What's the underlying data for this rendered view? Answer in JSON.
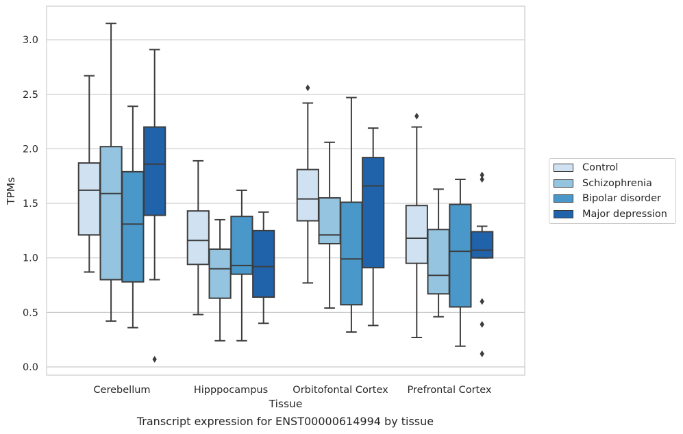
{
  "caption": "Transcript expression for ENST00000614994 by tissue",
  "chart_data": {
    "type": "box",
    "xlabel": "Tissue",
    "ylabel": "TPMs",
    "ylim": [
      -0.07,
      3.3
    ],
    "yticks": [
      0.0,
      0.5,
      1.0,
      1.5,
      2.0,
      2.5,
      3.0
    ],
    "ytick_labels": [
      "0.0",
      "0.5",
      "1.0",
      "1.5",
      "2.0",
      "2.5",
      "3.0"
    ],
    "grid": "horizontal",
    "legend_position": "right",
    "categories": [
      "Cerebellum",
      "Hipppocampus",
      "Orbitofontal Cortex",
      "Prefrontal Cortex"
    ],
    "series": [
      {
        "name": "Control",
        "color": "#d0e1f2",
        "boxes": [
          {
            "min": 0.87,
            "q1": 1.21,
            "median": 1.62,
            "q3": 1.87,
            "max": 2.67,
            "outliers": []
          },
          {
            "min": 0.48,
            "q1": 0.94,
            "median": 1.16,
            "q3": 1.43,
            "max": 1.89,
            "outliers": []
          },
          {
            "min": 0.77,
            "q1": 1.34,
            "median": 1.54,
            "q3": 1.81,
            "max": 2.42,
            "outliers": [
              2.56
            ]
          },
          {
            "min": 0.27,
            "q1": 0.95,
            "median": 1.18,
            "q3": 1.48,
            "max": 2.2,
            "outliers": [
              2.3
            ]
          }
        ]
      },
      {
        "name": "Schizophrenia",
        "color": "#94c4df",
        "boxes": [
          {
            "min": 0.42,
            "q1": 0.8,
            "median": 1.59,
            "q3": 2.02,
            "max": 3.15,
            "outliers": []
          },
          {
            "min": 0.24,
            "q1": 0.63,
            "median": 0.9,
            "q3": 1.08,
            "max": 1.35,
            "outliers": []
          },
          {
            "min": 0.54,
            "q1": 1.13,
            "median": 1.21,
            "q3": 1.55,
            "max": 2.06,
            "outliers": []
          },
          {
            "min": 0.46,
            "q1": 0.67,
            "median": 0.84,
            "q3": 1.26,
            "max": 1.63,
            "outliers": []
          }
        ]
      },
      {
        "name": "Bipolar disorder",
        "color": "#4a98c9",
        "boxes": [
          {
            "min": 0.36,
            "q1": 0.78,
            "median": 1.31,
            "q3": 1.79,
            "max": 2.39,
            "outliers": []
          },
          {
            "min": 0.24,
            "q1": 0.85,
            "median": 0.93,
            "q3": 1.38,
            "max": 1.62,
            "outliers": []
          },
          {
            "min": 0.32,
            "q1": 0.57,
            "median": 0.99,
            "q3": 1.51,
            "max": 2.47,
            "outliers": []
          },
          {
            "min": 0.19,
            "q1": 0.55,
            "median": 1.06,
            "q3": 1.49,
            "max": 1.72,
            "outliers": []
          }
        ]
      },
      {
        "name": "Major depression",
        "color": "#2163aa",
        "boxes": [
          {
            "min": 0.8,
            "q1": 1.39,
            "median": 1.86,
            "q3": 2.2,
            "max": 2.91,
            "outliers": [
              0.07
            ]
          },
          {
            "min": 0.4,
            "q1": 0.64,
            "median": 0.92,
            "q3": 1.25,
            "max": 1.42,
            "outliers": []
          },
          {
            "min": 0.38,
            "q1": 0.91,
            "median": 1.66,
            "q3": 1.92,
            "max": 2.19,
            "outliers": []
          },
          {
            "min": 1.0,
            "q1": 1.0,
            "median": 1.07,
            "q3": 1.24,
            "max": 1.29,
            "outliers": [
              1.76,
              1.72,
              0.6,
              0.39,
              0.12
            ]
          }
        ]
      }
    ]
  }
}
